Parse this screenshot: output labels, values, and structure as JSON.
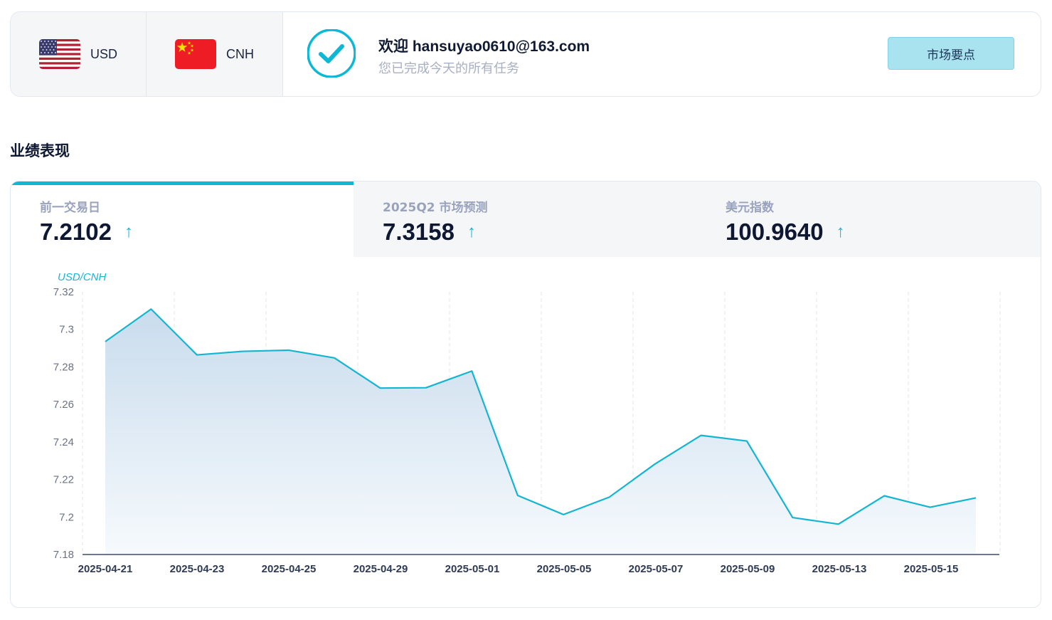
{
  "header": {
    "currencies": [
      {
        "code": "USD",
        "flag": "us-flag-icon"
      },
      {
        "code": "CNH",
        "flag": "cn-flag-icon"
      }
    ],
    "welcome": "欢迎 hansuyao0610@163.com",
    "subtitle": "您已完成今天的所有任务",
    "market_button": "市场要点"
  },
  "section_title": "业绩表现",
  "tabs": [
    {
      "label": "前一交易日",
      "value": "7.2102",
      "trend": "↑"
    },
    {
      "label": "2025Q2 市场预测",
      "value": "7.3158",
      "trend": "↑"
    },
    {
      "label": "美元指数",
      "value": "100.9640",
      "trend": "↑"
    }
  ],
  "colors": {
    "accent": "#0cb8d4",
    "line": "#13b5d1",
    "fill_top": "#c9dced",
    "fill_bottom": "#f6fafd",
    "button_bg": "#a9e3ef"
  },
  "chart_data": {
    "type": "area",
    "ylabel": "USD/CNH",
    "ylim": [
      7.18,
      7.32
    ],
    "yticks": [
      "7.32",
      "7.3",
      "7.28",
      "7.26",
      "7.24",
      "7.22",
      "7.2",
      "7.18"
    ],
    "xtick_labels": [
      "2025-04-21",
      "2025-04-23",
      "2025-04-25",
      "2025-04-29",
      "2025-05-01",
      "2025-05-05",
      "2025-05-07",
      "2025-05-09",
      "2025-05-13",
      "2025-05-15"
    ],
    "grid": "vertical-dashed",
    "series": [
      {
        "values": [
          7.2935,
          7.3108,
          7.2864,
          7.2883,
          7.2889,
          7.2848,
          7.2687,
          7.2689,
          7.2778,
          7.2115,
          7.2013,
          7.2106,
          7.2283,
          7.2435,
          7.2405,
          7.1997,
          7.1962,
          7.2113,
          7.2052,
          7.2102
        ]
      }
    ]
  }
}
